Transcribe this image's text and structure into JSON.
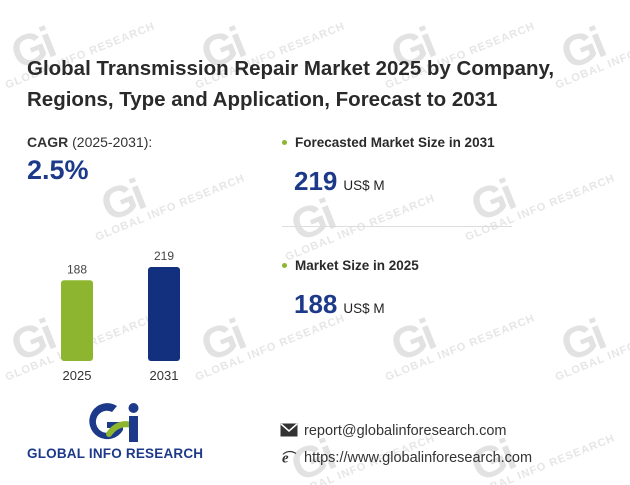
{
  "title": "Global Transmission Repair Market 2025 by Company, Regions, Type and Application, Forecast to 2031",
  "cagr": {
    "label_bold": "CAGR",
    "label_rest": " (2025-2031):",
    "value": "2.5%"
  },
  "kpis": [
    {
      "label": "Forecasted Market Size in 2031",
      "value": "219",
      "unit": "US$ M"
    },
    {
      "label": "Market Size in 2025",
      "value": "188",
      "unit": "US$ M"
    }
  ],
  "chart_data": {
    "type": "bar",
    "title": "",
    "xlabel": "",
    "ylabel": "",
    "categories": [
      "2025",
      "2031"
    ],
    "values": [
      188,
      219
    ],
    "colors": [
      "#8db530",
      "#12307e"
    ],
    "ylim": [
      0,
      219
    ],
    "grid": false
  },
  "brand": {
    "name": "GLOBAL INFO RESEARCH",
    "watermark_text": "GLOBAL INFO RESEARCH",
    "primary_color": "#1d3a8a",
    "accent_color": "#8db530"
  },
  "contact": {
    "email": "report@globalinforesearch.com",
    "website": "https://www.globalinforesearch.com"
  }
}
